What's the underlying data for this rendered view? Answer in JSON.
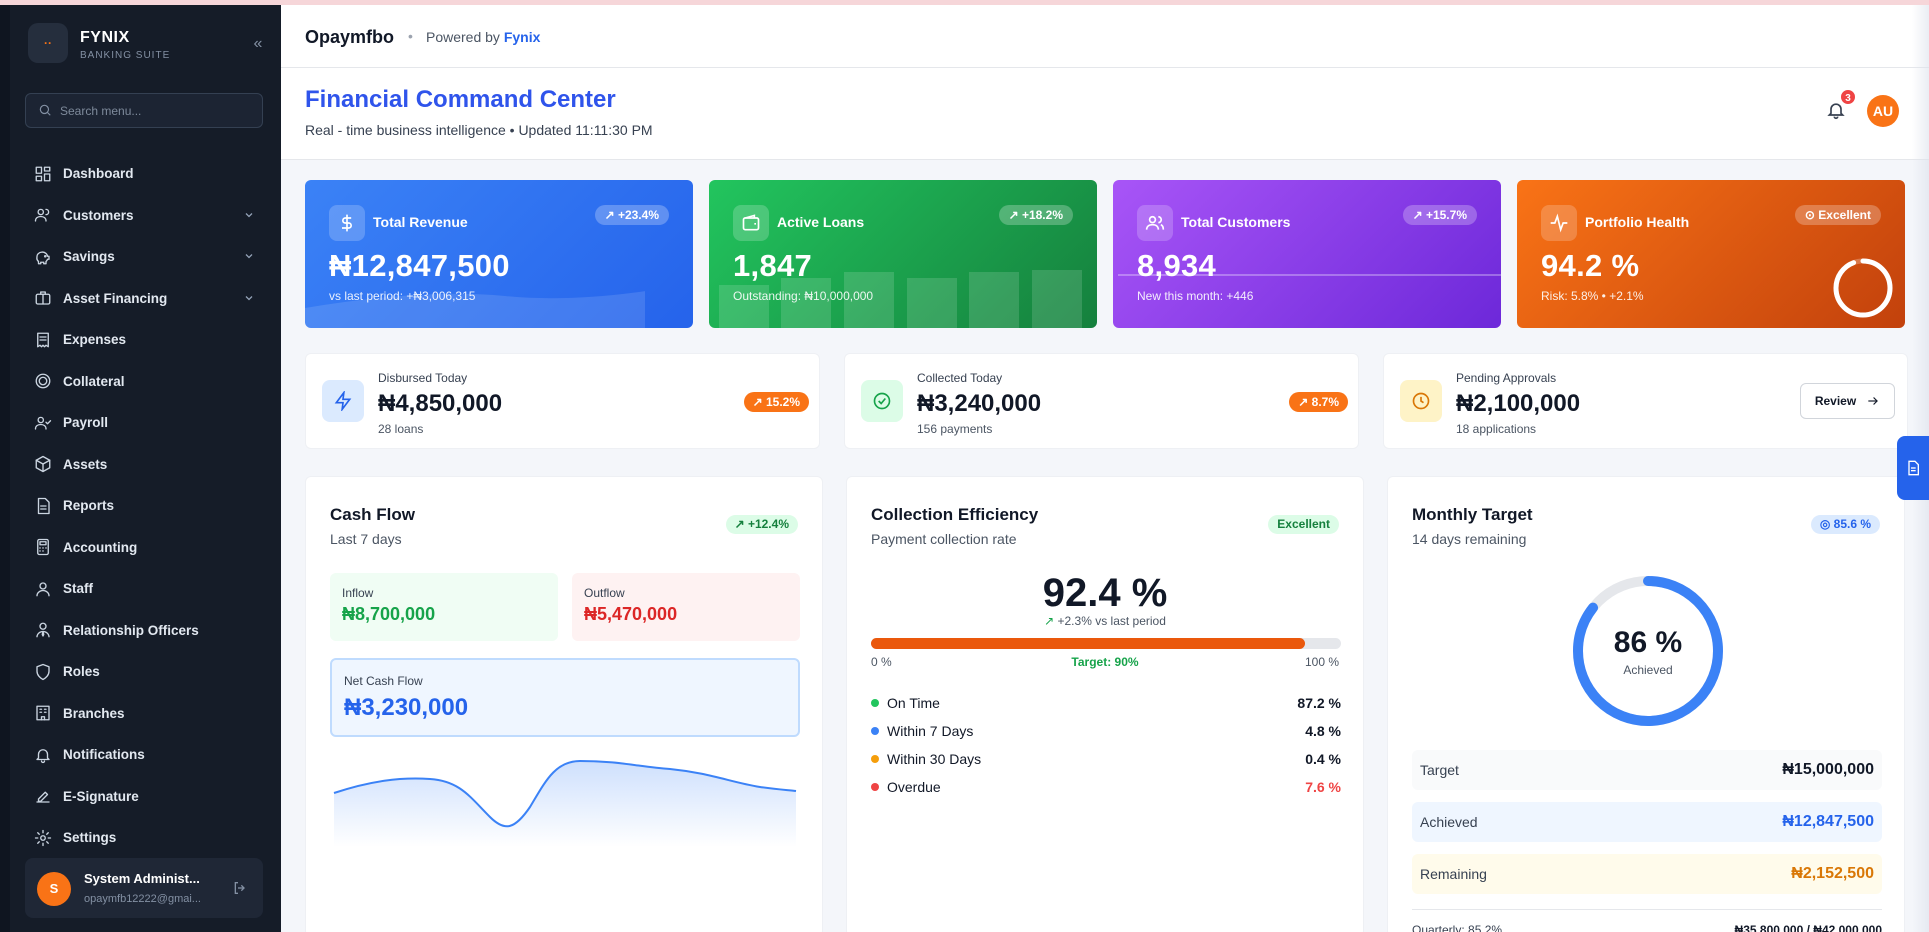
{
  "brand": {
    "name": "FYNIX",
    "subtitle": "BANKING SUITE",
    "logo_glyph": "··"
  },
  "search": {
    "placeholder": "Search menu..."
  },
  "nav": [
    {
      "label": "Dashboard",
      "icon": "dashboard-icon",
      "expandable": false
    },
    {
      "label": "Customers",
      "icon": "users-icon",
      "expandable": true
    },
    {
      "label": "Savings",
      "icon": "piggy-bank-icon",
      "expandable": true
    },
    {
      "label": "Asset Financing",
      "icon": "briefcase-icon",
      "expandable": true
    },
    {
      "label": "Expenses",
      "icon": "receipt-icon",
      "expandable": false
    },
    {
      "label": "Collateral",
      "icon": "coin-icon",
      "expandable": false
    },
    {
      "label": "Payroll",
      "icon": "user-check-icon",
      "expandable": false
    },
    {
      "label": "Assets",
      "icon": "box-icon",
      "expandable": false
    },
    {
      "label": "Reports",
      "icon": "file-text-icon",
      "expandable": false
    },
    {
      "label": "Accounting",
      "icon": "calculator-icon",
      "expandable": false
    },
    {
      "label": "Staff",
      "icon": "user-icon",
      "expandable": false
    },
    {
      "label": "Relationship Officers",
      "icon": "user-tie-icon",
      "expandable": false
    },
    {
      "label": "Roles",
      "icon": "shield-icon",
      "expandable": false
    },
    {
      "label": "Branches",
      "icon": "building-icon",
      "expandable": false
    },
    {
      "label": "Notifications",
      "icon": "bell-icon",
      "expandable": false
    },
    {
      "label": "E-Signature",
      "icon": "signature-icon",
      "expandable": false
    },
    {
      "label": "Settings",
      "icon": "gear-icon",
      "expandable": false
    }
  ],
  "user": {
    "initial": "S",
    "name": "System Administ...",
    "email": "opaymfb12222@gmai..."
  },
  "appbar": {
    "title": "Opaymfbo",
    "separator": "•",
    "powered_prefix": "Powered by",
    "powered_brand": "Fynix"
  },
  "header": {
    "title": "Financial Command Center",
    "subtitle": "Real - time business intelligence • Updated 11:11:30 PM",
    "notification_count": "3",
    "avatar_initials": "AU"
  },
  "kpis": [
    {
      "label": "Total Revenue",
      "badge": "+23.4%",
      "value": "₦12,847,500",
      "sub": "vs last period: +₦3,006,315",
      "color": "#2563eb"
    },
    {
      "label": "Active Loans",
      "badge": "+18.2%",
      "value": "1,847",
      "sub": "Outstanding: ₦10,000,000",
      "color": "#16a34a"
    },
    {
      "label": "Total Customers",
      "badge": "+15.7%",
      "value": "8,934",
      "sub": "New this month: +446",
      "color": "#7c3aed"
    },
    {
      "label": "Portfolio Health",
      "badge": "Excellent",
      "value": "94.2 %",
      "sub": "Risk: 5.8% • +2.1%",
      "color": "#ea580c",
      "health_fraction": 0.942
    }
  ],
  "stats": [
    {
      "label": "Disbursed Today",
      "value": "₦4,850,000",
      "sub": "28 loans",
      "pill": "15.2%"
    },
    {
      "label": "Collected Today",
      "value": "₦3,240,000",
      "sub": "156 payments",
      "pill": "8.7%"
    },
    {
      "label": "Pending Approvals",
      "value": "₦2,100,000",
      "sub": "18 applications",
      "button": "Review"
    }
  ],
  "cashflow": {
    "title": "Cash Flow",
    "subtitle": "Last 7 days",
    "badge": "+12.4%",
    "inflow_label": "Inflow",
    "inflow_value": "₦8,700,000",
    "outflow_label": "Outflow",
    "outflow_value": "₦5,470,000",
    "net_label": "Net Cash Flow",
    "net_value": "₦3,230,000"
  },
  "collection": {
    "title": "Collection Efficiency",
    "subtitle": "Payment collection rate",
    "badge": "Excellent",
    "rate": "92.4 %",
    "rate_fraction": 0.924,
    "vs_last": "+2.3% vs last period",
    "scale_min": "0 %",
    "target_label": "Target: 90%",
    "scale_max": "100 %",
    "breakdown": [
      {
        "label": "On Time",
        "value": "87.2 %",
        "color": "#22c55e"
      },
      {
        "label": "Within 7 Days",
        "value": "4.8 %",
        "color": "#3b82f6"
      },
      {
        "label": "Within 30 Days",
        "value": "0.4 %",
        "color": "#f59e0b"
      },
      {
        "label": "Overdue",
        "value": "7.6 %",
        "color": "#ef4444"
      }
    ]
  },
  "monthly": {
    "title": "Monthly Target",
    "subtitle": "14 days remaining",
    "badge": "85.6 %",
    "achieved_pct": "86 %",
    "achieved_label": "Achieved",
    "achieved_fraction": 0.856,
    "rows": [
      {
        "label": "Target",
        "value": "₦15,000,000"
      },
      {
        "label": "Achieved",
        "value": "₦12,847,500"
      },
      {
        "label": "Remaining",
        "value": "₦2,152,500"
      }
    ],
    "quarterly_label": "Quarterly: 85.2%",
    "quarterly_value": "₦35,800,000 / ₦42,000,000"
  }
}
